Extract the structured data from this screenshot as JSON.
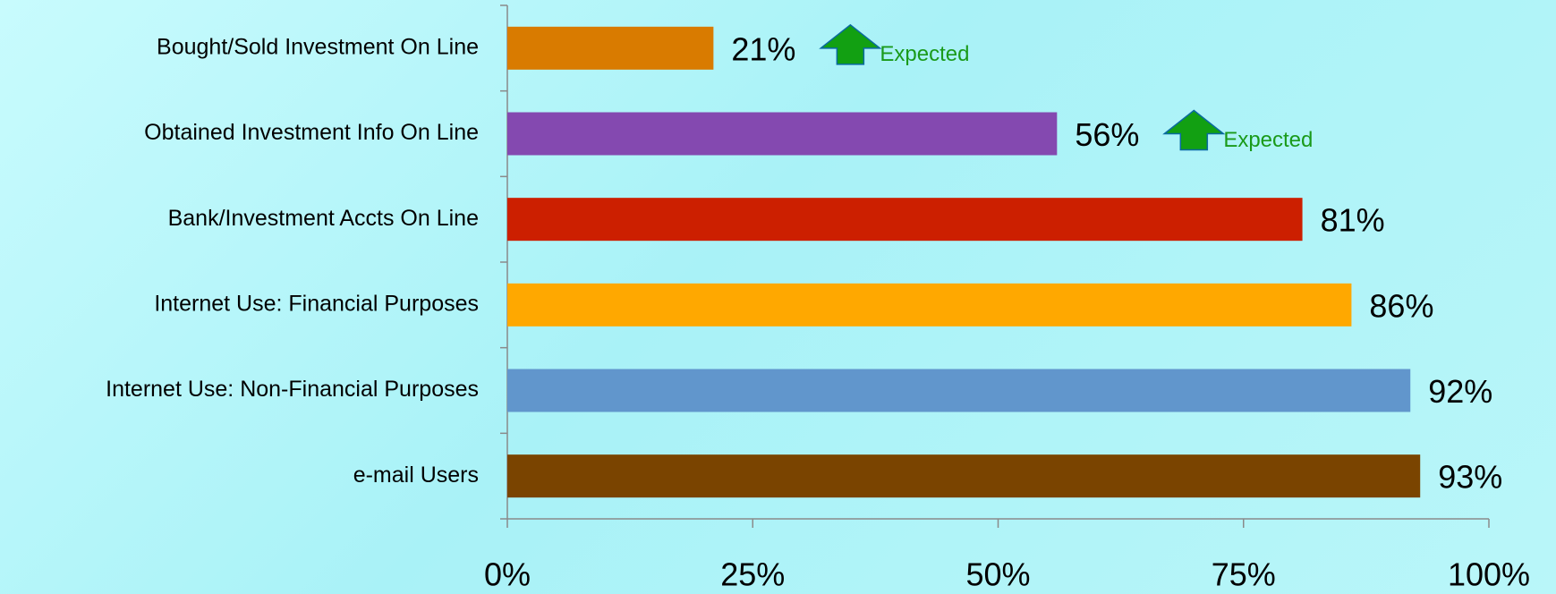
{
  "chart_data": {
    "type": "hbar",
    "categories": [
      "Bought/Sold Investment On Line",
      "Obtained Investment Info On Line",
      "Bank/Investment Accts On Line",
      "Internet Use: Financial Purposes",
      "Internet Use: Non-Financial Purposes",
      "e-mail Users"
    ],
    "values": [
      21,
      56,
      81,
      86,
      92,
      93
    ],
    "value_labels": [
      "21%",
      "56%",
      "81%",
      "86%",
      "92%",
      "93%"
    ],
    "colors": [
      "#d97b00",
      "#8449b0",
      "#cc1f00",
      "#ffa800",
      "#6196cc",
      "#7a4400"
    ],
    "annotations": [
      "Expected",
      "Expected",
      null,
      null,
      null,
      null
    ],
    "xlim": [
      0,
      100
    ],
    "xticks": [
      {
        "value": 0,
        "label": "0%"
      },
      {
        "value": 25,
        "label": "25%"
      },
      {
        "value": 50,
        "label": "50%"
      },
      {
        "value": 75,
        "label": "75%"
      },
      {
        "value": 100,
        "label": "100%"
      }
    ],
    "grid": false
  }
}
